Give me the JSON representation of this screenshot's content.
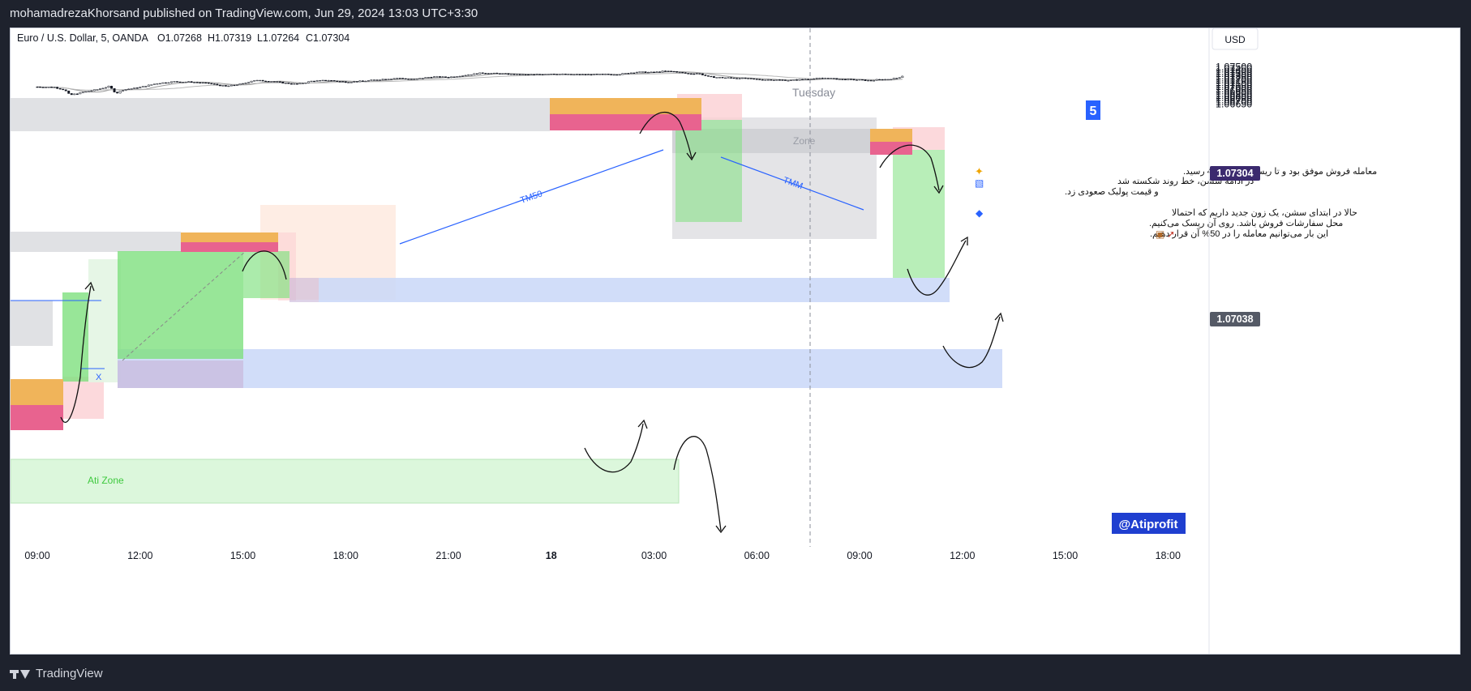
{
  "header": {
    "publish_line": "mohamadrezaKhorsand published on TradingView.com, Jun 29, 2024 13:03 UTC+3:30"
  },
  "legend": {
    "symbol": "Euro / U.S. Dollar, 5, OANDA",
    "open": "O1.07268",
    "high": "H1.07319",
    "low": "L1.07264",
    "close": "C1.07304"
  },
  "currency_button": "USD",
  "price_badges": {
    "last": "1.07304",
    "cursor": "1.07038"
  },
  "session_label": "Tuesday",
  "number_badge": "5",
  "watermark": "@Atiprofit",
  "zone_labels": {
    "zone": "Zone",
    "ati_zone": "Ati Zone",
    "x_mark": "X"
  },
  "line_labels": {
    "tm50": "TM50",
    "tmm": "TMM"
  },
  "notes": {
    "line1": "معامله فروش موفق بود و تا ریسک به ریوارد 4 رسید.",
    "line2": "در ادامه سشن، خط روند شکسته شد",
    "line3": "و قیمت پولبک صعودی زد.",
    "line4": "حالا در ابتدای سشن، یک زون جدید داریم که احتمالا",
    "line5": "محل سفارشات فروش باشد. روی آن ریسک می‌کنیم.",
    "line6": "این بار می‌توانیم معامله را در 50% آن قرار دهیم."
  },
  "footer": {
    "brand": "TradingView"
  },
  "colors": {
    "background": "#ffffff",
    "frame": "#1e222d",
    "trendline": "#2962ff",
    "supply_orange": "#f0b45a",
    "supply_pink": "#e8638f",
    "demand_green": "#7ee07e",
    "blue_zone": "#c9d7f8",
    "gray_zone": "#d8d9dd",
    "badge_last": "#3b2a6e",
    "badge_cursor": "#555a66",
    "number_badge": "#2962ff"
  },
  "chart_data": {
    "type": "candlestick",
    "symbol": "Euro / U.S. Dollar",
    "timeframe": "5",
    "ylim": [
      1.0664,
      1.0755
    ],
    "y_ticks": [
      "1.07500",
      "1.07450",
      "1.07400",
      "1.07350",
      "1.07300",
      "1.07250",
      "1.07200",
      "1.07150",
      "1.07100",
      "1.07050",
      "1.07000",
      "1.06950",
      "1.06900",
      "1.06850",
      "1.06800",
      "1.06750",
      "1.06700",
      "1.06650"
    ],
    "x_ticks": [
      "09:00",
      "12:00",
      "15:00",
      "18:00",
      "21:00",
      "18",
      "03:00",
      "06:00",
      "09:00",
      "12:00",
      "15:00",
      "18:00"
    ],
    "x_tick_hours": [
      0,
      3,
      6,
      9,
      12,
      15,
      18,
      21,
      24,
      27,
      30,
      33
    ],
    "path_anchors": [
      [
        0,
        1.0705
      ],
      [
        0.5,
        1.0704
      ],
      [
        0.8,
        1.0698
      ],
      [
        0.95,
        1.0686
      ],
      [
        1.3,
        1.0692
      ],
      [
        1.7,
        1.0698
      ],
      [
        2.1,
        1.0706
      ],
      [
        2.3,
        1.069
      ],
      [
        2.5,
        1.0698
      ],
      [
        3,
        1.0704
      ],
      [
        3.5,
        1.0713
      ],
      [
        4,
        1.0717
      ],
      [
        4.5,
        1.0716
      ],
      [
        5,
        1.0713
      ],
      [
        5.5,
        1.0706
      ],
      [
        6,
        1.0712
      ],
      [
        6.3,
        1.072
      ],
      [
        6.8,
        1.0718
      ],
      [
        7.3,
        1.0713
      ],
      [
        7.6,
        1.0711
      ],
      [
        8,
        1.0718
      ],
      [
        8.5,
        1.072
      ],
      [
        9,
        1.0716
      ],
      [
        9.5,
        1.0718
      ],
      [
        10,
        1.0722
      ],
      [
        10.5,
        1.0725
      ],
      [
        11,
        1.0722
      ],
      [
        11.5,
        1.0728
      ],
      [
        12,
        1.0727
      ],
      [
        12.5,
        1.0732
      ],
      [
        13,
        1.0737
      ],
      [
        13.5,
        1.0735
      ],
      [
        14,
        1.0733
      ],
      [
        14.5,
        1.0733
      ],
      [
        15,
        1.0735
      ],
      [
        15.5,
        1.0733
      ],
      [
        16,
        1.0733
      ],
      [
        17,
        1.0734
      ],
      [
        17.5,
        1.0739
      ],
      [
        18,
        1.0738
      ],
      [
        18.3,
        1.0741
      ],
      [
        18.6,
        1.074
      ],
      [
        19,
        1.0735
      ],
      [
        19.3,
        1.0736
      ],
      [
        19.6,
        1.0728
      ],
      [
        20,
        1.0726
      ],
      [
        20.5,
        1.0725
      ],
      [
        21,
        1.0722
      ],
      [
        21.5,
        1.0721
      ],
      [
        22,
        1.072
      ],
      [
        22.5,
        1.0723
      ],
      [
        23,
        1.0725
      ],
      [
        23.5,
        1.0722
      ],
      [
        24,
        1.0721
      ],
      [
        24.3,
        1.0719
      ],
      [
        24.5,
        1.0721
      ],
      [
        24.8,
        1.0722
      ],
      [
        25.1,
        1.0725
      ],
      [
        25.25,
        1.073
      ]
    ]
  }
}
